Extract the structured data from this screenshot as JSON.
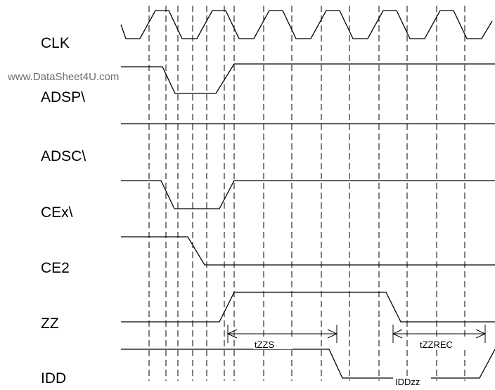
{
  "watermark": "www.DataSheet4U.com",
  "signals": {
    "clk": "CLK",
    "adsp": "ADSP\\",
    "adsc": "ADSC\\",
    "cex": "CEx\\",
    "ce2": "CE2",
    "zz": "ZZ",
    "idd": "IDD"
  },
  "annotations": {
    "tzzs": "tZZS",
    "tzzrec": "tZZREC",
    "iddzz": "IDDzz"
  }
}
